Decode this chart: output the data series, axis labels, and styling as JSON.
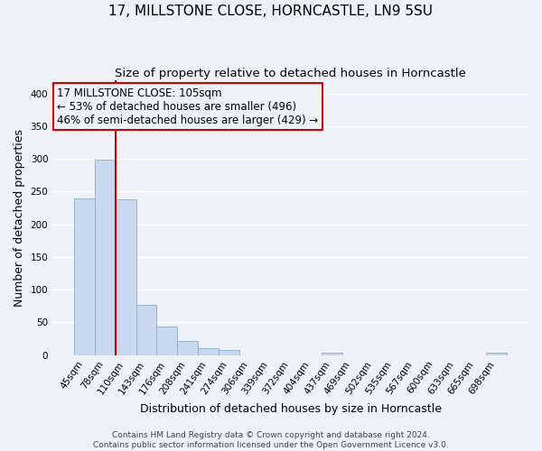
{
  "title": "17, MILLSTONE CLOSE, HORNCASTLE, LN9 5SU",
  "subtitle": "Size of property relative to detached houses in Horncastle",
  "xlabel": "Distribution of detached houses by size in Horncastle",
  "ylabel": "Number of detached properties",
  "bin_labels": [
    "45sqm",
    "78sqm",
    "110sqm",
    "143sqm",
    "176sqm",
    "208sqm",
    "241sqm",
    "274sqm",
    "306sqm",
    "339sqm",
    "372sqm",
    "404sqm",
    "437sqm",
    "469sqm",
    "502sqm",
    "535sqm",
    "567sqm",
    "600sqm",
    "633sqm",
    "665sqm",
    "698sqm"
  ],
  "bar_heights": [
    240,
    299,
    238,
    76,
    44,
    22,
    10,
    7,
    0,
    0,
    0,
    0,
    4,
    0,
    0,
    0,
    0,
    0,
    0,
    0,
    4
  ],
  "bar_color": "#C8D8EE",
  "bar_edge_color": "#8AAED4",
  "vline_color": "#CC0000",
  "annotation_title": "17 MILLSTONE CLOSE: 105sqm",
  "annotation_line1": "← 53% of detached houses are smaller (496)",
  "annotation_line2": "46% of semi-detached houses are larger (429) →",
  "annotation_box_color": "#CC0000",
  "ylim": [
    0,
    420
  ],
  "yticks": [
    0,
    50,
    100,
    150,
    200,
    250,
    300,
    350,
    400
  ],
  "footer1": "Contains HM Land Registry data © Crown copyright and database right 2024.",
  "footer2": "Contains public sector information licensed under the Open Government Licence v3.0.",
  "background_color": "#EEF2F8",
  "grid_color": "#FFFFFF",
  "title_fontsize": 11,
  "subtitle_fontsize": 9.5,
  "axis_label_fontsize": 9,
  "tick_fontsize": 7.5,
  "annotation_fontsize": 8.5,
  "footer_fontsize": 6.5,
  "vline_bin_index": 2
}
